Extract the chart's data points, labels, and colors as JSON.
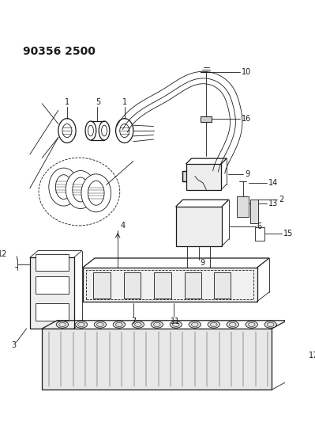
{
  "title": "90356 2500",
  "bg_color": "#ffffff",
  "line_color": "#1a1a1a",
  "title_fontsize": 10,
  "fig_width": 3.99,
  "fig_height": 5.33,
  "dpi": 100
}
